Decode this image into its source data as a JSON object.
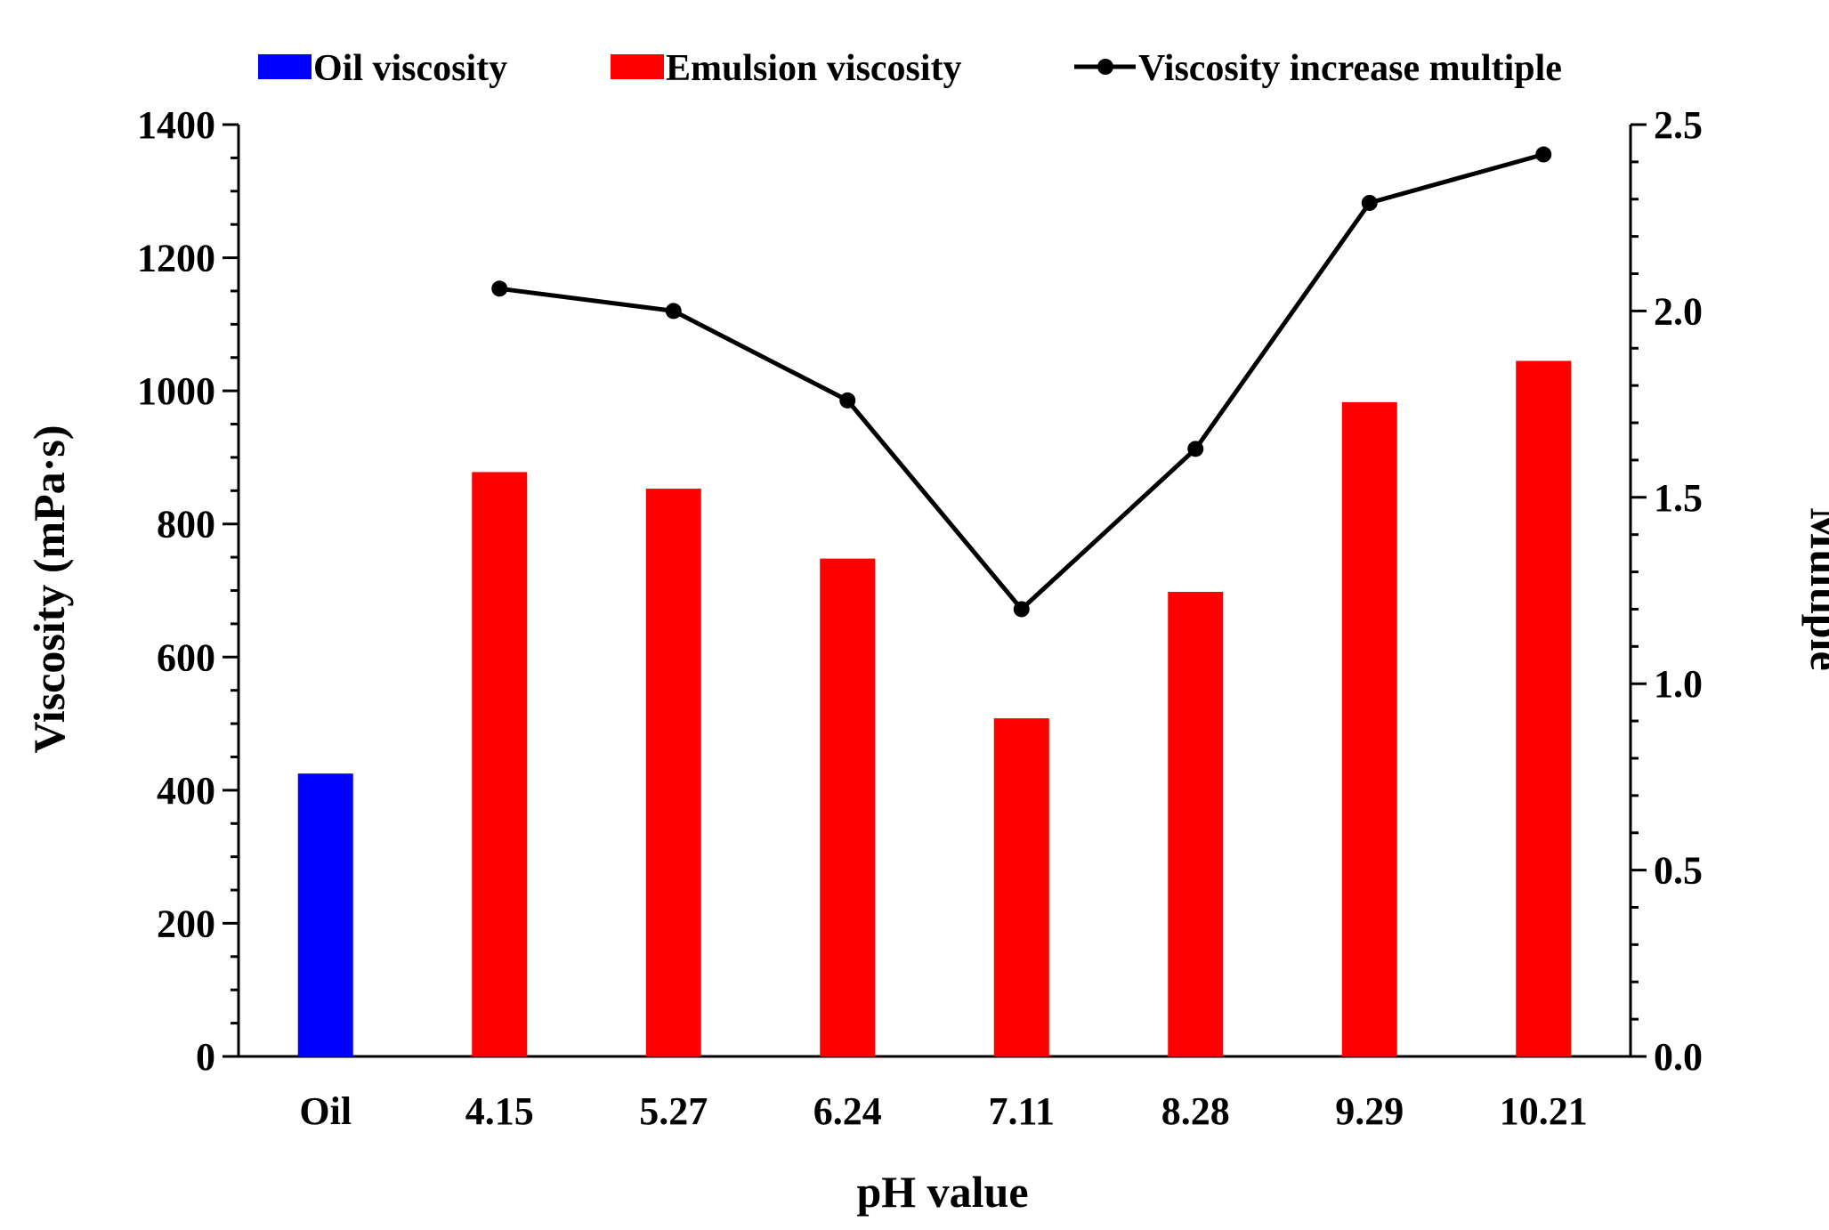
{
  "chart_data": {
    "type": "bar",
    "title": "",
    "xlabel": "pH value",
    "ylabel": "Viscosity (mPa·s)",
    "y2label": "Multiple",
    "categories": [
      "Oil",
      "4.15",
      "5.27",
      "6.24",
      "7.11",
      "8.28",
      "9.29",
      "10.21"
    ],
    "ylim": [
      0,
      1400
    ],
    "y2lim": [
      0,
      2.5
    ],
    "yticks": [
      "0",
      "200",
      "400",
      "600",
      "800",
      "1000",
      "1200",
      "1400"
    ],
    "y2ticks": [
      "0.0",
      "0.5",
      "1.0",
      "1.5",
      "2.0",
      "2.5"
    ],
    "series": [
      {
        "name": "Oil viscosity",
        "kind": "bar",
        "axis": "left",
        "color": "#0000ff",
        "values": [
          425,
          null,
          null,
          null,
          null,
          null,
          null,
          null
        ]
      },
      {
        "name": "Emulsion viscosity",
        "kind": "bar",
        "axis": "left",
        "color": "#ff0000",
        "values": [
          null,
          878,
          853,
          748,
          508,
          698,
          983,
          1045
        ]
      },
      {
        "name": "Viscosity increase multiple",
        "kind": "line",
        "axis": "right",
        "color": "#000000",
        "values": [
          null,
          2.06,
          2.0,
          1.76,
          1.2,
          1.63,
          2.29,
          2.42
        ]
      }
    ],
    "legend_position": "top",
    "grid": false
  }
}
